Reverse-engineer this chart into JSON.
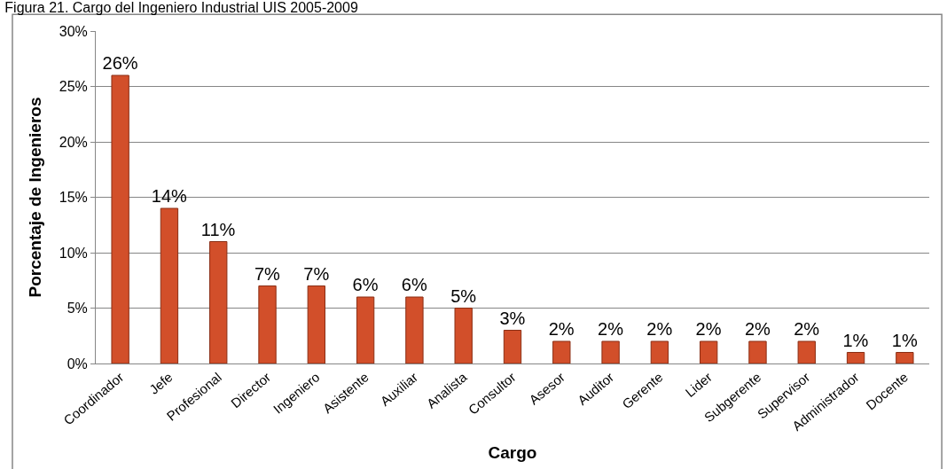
{
  "chart_data": {
    "type": "bar",
    "title": "Figura 21. Cargo del Ingeniero Industrial UIS 2005-2009",
    "xlabel": "Cargo",
    "ylabel": "Porcentaje de Ingenieros",
    "categories": [
      "Coordinador",
      "Jefe",
      "Profesional",
      "Director",
      "Ingeniero",
      "Asistente",
      "Auxiliar",
      "Analista",
      "Consultor",
      "Asesor",
      "Auditor",
      "Gerente",
      "Lider",
      "Subgerente",
      "Supervisor",
      "Administrador",
      "Docente"
    ],
    "values": [
      26,
      14,
      11,
      7,
      7,
      6,
      6,
      5,
      3,
      2,
      2,
      2,
      2,
      2,
      2,
      1,
      1
    ],
    "value_labels": [
      "26%",
      "14%",
      "11%",
      "7%",
      "7%",
      "6%",
      "6%",
      "5%",
      "3%",
      "2%",
      "2%",
      "2%",
      "2%",
      "2%",
      "2%",
      "1%",
      "1%"
    ],
    "color": "#d24f2a",
    "ylim": [
      0,
      30
    ],
    "yticks": [
      {
        "value": 0,
        "label": "0%"
      },
      {
        "value": 5,
        "label": "5%"
      },
      {
        "value": 10,
        "label": "10%"
      },
      {
        "value": 15,
        "label": "15%"
      },
      {
        "value": 20,
        "label": "20%"
      },
      {
        "value": 25,
        "label": "25%"
      },
      {
        "value": 30,
        "label": "30%"
      }
    ],
    "grid": "y",
    "legend": false
  }
}
